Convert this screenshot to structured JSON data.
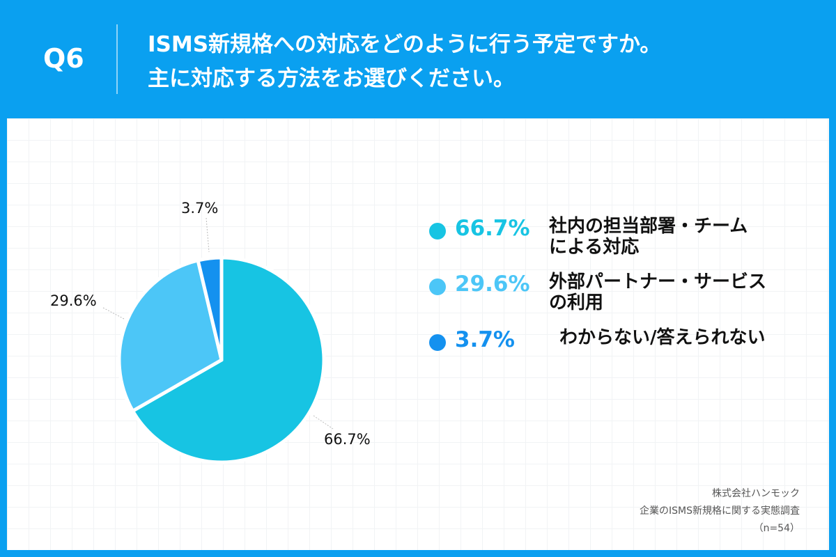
{
  "header": {
    "qnum": "Q6",
    "title_line1": "ISMS新規格への対応をどのように行う予定ですか。",
    "title_line2": "主に対応する方法をお選びください。"
  },
  "colors": {
    "header_bg": "#0aa0f0",
    "series": [
      "#17c4e3",
      "#4cc6f7",
      "#1491ef"
    ]
  },
  "chart_data": {
    "type": "pie",
    "slices": [
      {
        "label": "社内の担当部署・チームによる対応",
        "value": 66.7,
        "value_label": "66.7%"
      },
      {
        "label": "外部パートナー・サービスの利用",
        "value": 29.6,
        "value_label": "29.6%"
      },
      {
        "label": "わからない/答えられない",
        "value": 3.7,
        "value_label": "3.7%"
      }
    ]
  },
  "legend": [
    {
      "pct": "66.7%",
      "label": "社内の担当部署・チーム\nによる対応"
    },
    {
      "pct": "29.6%",
      "label": "外部パートナー・サービス\nの利用"
    },
    {
      "pct": "3.7%",
      "label": "わからない/答えられない"
    }
  ],
  "source": {
    "line1": "株式会社ハンモック",
    "line2": "企業のISMS新規格に関する実態調査",
    "line3": "（n=54）"
  }
}
